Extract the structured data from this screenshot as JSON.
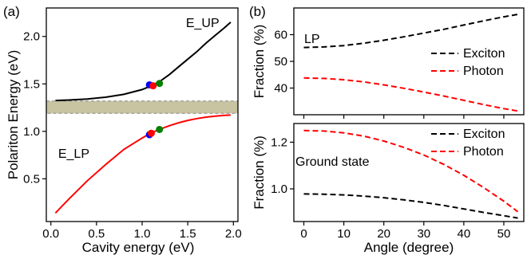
{
  "chart_data": [
    {
      "id": "a",
      "panel_label": "(a)",
      "type": "line",
      "xlabel": "Cavity energy (eV)",
      "ylabel": "Polariton Energy (eV)",
      "xlim": [
        -0.05,
        2.05
      ],
      "ylim": [
        0.05,
        2.3
      ],
      "xticks": [
        0.0,
        0.5,
        1.0,
        1.5,
        2.0
      ],
      "xtick_labels": [
        "0.0",
        "0.5",
        "1.0",
        "1.5",
        "2.0"
      ],
      "yticks": [
        0.5,
        1.0,
        1.5,
        2.0
      ],
      "ytick_labels": [
        "0.5",
        "1.0",
        "1.5",
        "2.0"
      ],
      "grid": false,
      "band": {
        "y": [
          1.19,
          1.32
        ],
        "color": "#c8c3a0"
      },
      "series": [
        {
          "name": "E_UP",
          "color": "#000000",
          "x": [
            0.05,
            0.2,
            0.4,
            0.6,
            0.8,
            1.0,
            1.1,
            1.2,
            1.3,
            1.4,
            1.5,
            1.6,
            1.7,
            1.8,
            1.9,
            1.97
          ],
          "values": [
            1.325,
            1.33,
            1.34,
            1.36,
            1.39,
            1.44,
            1.48,
            1.53,
            1.6,
            1.68,
            1.76,
            1.84,
            1.93,
            2.01,
            2.09,
            2.15
          ]
        },
        {
          "name": "E_LP",
          "color": "#ff0000",
          "x": [
            0.05,
            0.2,
            0.4,
            0.6,
            0.8,
            1.0,
            1.1,
            1.2,
            1.3,
            1.4,
            1.5,
            1.6,
            1.7,
            1.8,
            1.9,
            1.97
          ],
          "values": [
            0.14,
            0.29,
            0.48,
            0.65,
            0.81,
            0.93,
            0.985,
            1.025,
            1.06,
            1.09,
            1.115,
            1.135,
            1.15,
            1.16,
            1.168,
            1.172
          ]
        }
      ],
      "markers": [
        {
          "x": 1.08,
          "y": 1.49,
          "color": "#0000ff"
        },
        {
          "x": 1.12,
          "y": 1.48,
          "color": "#ff0000"
        },
        {
          "x": 1.19,
          "y": 1.505,
          "color": "#008000"
        },
        {
          "x": 1.08,
          "y": 0.965,
          "color": "#0000ff"
        },
        {
          "x": 1.1,
          "y": 0.98,
          "color": "#ff0000"
        },
        {
          "x": 1.19,
          "y": 1.02,
          "color": "#008000"
        }
      ],
      "annotations": [
        {
          "text": "E_UP",
          "x": 1.48,
          "y": 2.1
        },
        {
          "text": "E_LP",
          "x": 0.08,
          "y": 0.72
        }
      ]
    },
    {
      "id": "b-top",
      "panel_label": "(b)",
      "type": "line",
      "xlabel": "",
      "ylabel": "Fraction (%)",
      "xlim": [
        -2.5,
        55
      ],
      "ylim": [
        30,
        70
      ],
      "xticks": [
        0,
        10,
        20,
        30,
        40,
        50
      ],
      "xtick_labels": [],
      "yticks": [
        40,
        50,
        60
      ],
      "ytick_labels": [
        "40",
        "50",
        "60"
      ],
      "grid": false,
      "annotation": "LP",
      "legend_position": "right",
      "series": [
        {
          "name": "Exciton",
          "color": "#000000",
          "dash": "dashed",
          "x": [
            0,
            5,
            10,
            15,
            20,
            25,
            30,
            35,
            40,
            45,
            50,
            53.5
          ],
          "values": [
            55.2,
            55.4,
            55.9,
            56.8,
            57.9,
            59.2,
            60.6,
            62.0,
            63.6,
            65.2,
            66.7,
            67.6
          ]
        },
        {
          "name": "Photon",
          "color": "#ff0000",
          "dash": "dashed",
          "x": [
            0,
            5,
            10,
            15,
            20,
            25,
            30,
            35,
            40,
            45,
            50,
            53.5
          ],
          "values": [
            43.8,
            43.6,
            43.1,
            42.3,
            41.2,
            39.9,
            38.5,
            37.0,
            35.4,
            33.8,
            32.3,
            31.4
          ]
        }
      ]
    },
    {
      "id": "b-bottom",
      "type": "line",
      "xlabel": "Angle (degree)",
      "ylabel": "Fraction (%)",
      "xlim": [
        -2.5,
        55
      ],
      "ylim": [
        0.86,
        1.28
      ],
      "xticks": [
        0,
        10,
        20,
        30,
        40,
        50
      ],
      "xtick_labels": [
        "0",
        "10",
        "20",
        "30",
        "40",
        "50"
      ],
      "yticks": [
        1.0,
        1.2
      ],
      "ytick_labels": [
        "1.0",
        "1.2"
      ],
      "grid": false,
      "annotation": "Ground state",
      "legend_position": "top-right",
      "series": [
        {
          "name": "Exciton",
          "color": "#000000",
          "dash": "dashed",
          "x": [
            0,
            5,
            10,
            15,
            20,
            25,
            30,
            35,
            40,
            45,
            50,
            53.5
          ],
          "values": [
            0.978,
            0.977,
            0.974,
            0.969,
            0.962,
            0.953,
            0.942,
            0.929,
            0.914,
            0.899,
            0.885,
            0.875
          ]
        },
        {
          "name": "Photon",
          "color": "#ff0000",
          "dash": "dashed",
          "x": [
            0,
            5,
            10,
            15,
            20,
            25,
            30,
            35,
            40,
            45,
            50,
            53.5
          ],
          "values": [
            1.25,
            1.248,
            1.24,
            1.226,
            1.205,
            1.178,
            1.145,
            1.105,
            1.058,
            1.005,
            0.947,
            0.902
          ]
        }
      ]
    }
  ]
}
